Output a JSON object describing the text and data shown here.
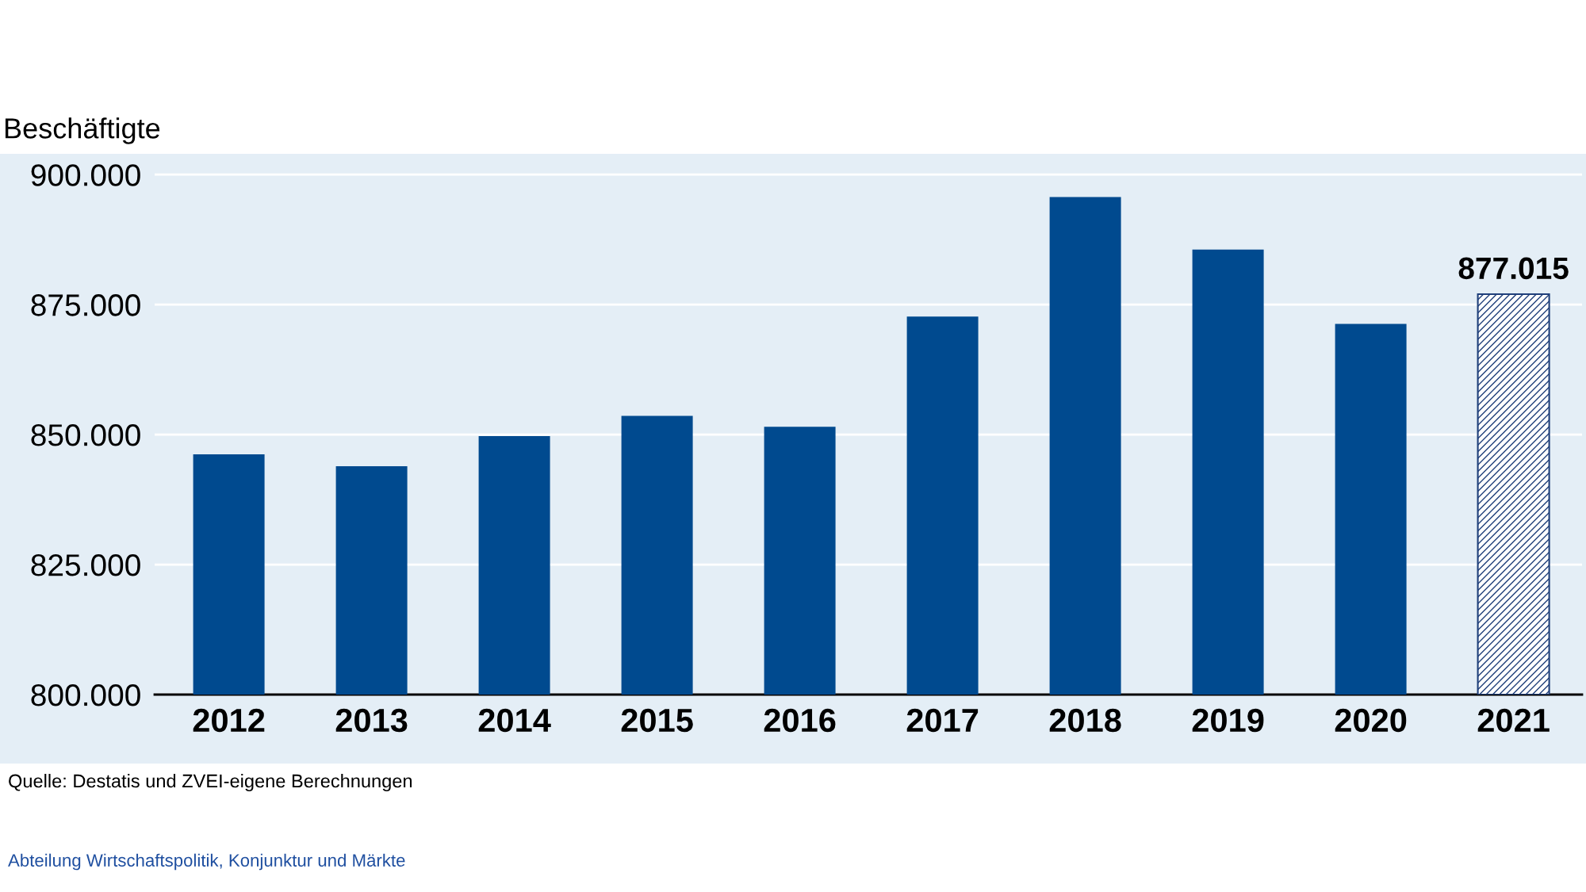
{
  "chart_data": {
    "type": "bar",
    "ylabel": "Beschäftigte",
    "categories": [
      "2012",
      "2013",
      "2014",
      "2015",
      "2016",
      "2017",
      "2018",
      "2019",
      "2020",
      "2021"
    ],
    "series": [
      {
        "color": "#004a8f",
        "values": [
          846200,
          843900,
          849700,
          853600,
          851500,
          872700,
          895700,
          885600,
          871300,
          null
        ]
      },
      {
        "color": "#1f3f7a",
        "values": [
          null,
          null,
          null,
          null,
          null,
          null,
          null,
          null,
          null,
          877015
        ],
        "value_labels": [
          null,
          null,
          null,
          null,
          null,
          null,
          null,
          null,
          null,
          "877.015"
        ]
      }
    ],
    "ylim": [
      800000,
      904000
    ],
    "yticks": [
      {
        "value": 800000,
        "label": "800.000"
      },
      {
        "value": 825000,
        "label": "825.000"
      },
      {
        "value": 850000,
        "label": "850.000"
      },
      {
        "value": 875000,
        "label": "875.000"
      },
      {
        "value": 900000,
        "label": "900.000"
      }
    ],
    "grid": "y",
    "annotations": [
      "Quelle: Destatis und ZVEI-eigene Berechnungen",
      "Abteilung Wirtschaftspolitik, Konjunktur und Märkte"
    ]
  }
}
